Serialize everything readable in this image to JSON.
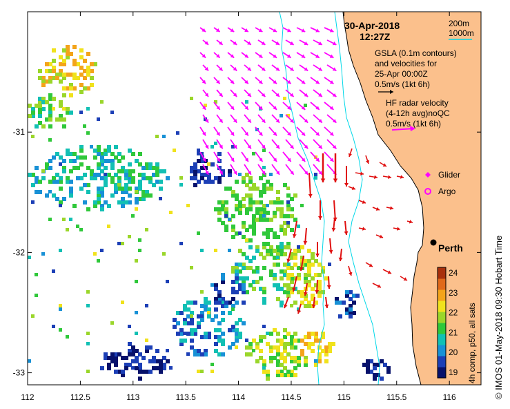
{
  "map": {
    "date": "30-Apr-2018",
    "time": "12:27Z",
    "x_ticks": [
      "112",
      "112.5",
      "113",
      "113.5",
      "114",
      "114.5",
      "115",
      "115.5",
      "116"
    ],
    "y_ticks": [
      "-31",
      "-32",
      "-33"
    ],
    "x_range": [
      112,
      116.3
    ],
    "y_range": [
      -30.0,
      -33.1
    ],
    "depth_contours": {
      "shallow": "200m",
      "deep": "1000m",
      "shallow_color": "#ffffff",
      "deep_color": "#00d8e8"
    },
    "gsla": {
      "line1": "GSLA (0.1m contours)",
      "line2": "and velocities for",
      "line3": "25-Apr 00:00Z",
      "scale": "0.5m/s (1kt 6h)",
      "arrow_color": "#000000"
    },
    "hf_radar": {
      "line1": "HF radar velocity",
      "line2": "(4-12h avg)noQC",
      "scale": "0.5m/s (1kt 6h)",
      "arrow_color": "#ff00ff"
    },
    "legend": {
      "glider": "Glider",
      "argo": "Argo",
      "glider_color": "#ff00ff",
      "argo_color": "#ff00ff"
    },
    "city": {
      "name": "Perth",
      "lon": 115.86,
      "lat": -31.95
    },
    "land_color": "#fbc08c",
    "velocity_colors": {
      "radar": "#ff00ff",
      "strong": "#e01010"
    }
  },
  "colorbar": {
    "ticks": [
      "24",
      "23",
      "22",
      "21",
      "20",
      "19"
    ],
    "label": "4h comp, p50, all sats",
    "colors": [
      "#07116b",
      "#1c3fb6",
      "#1891d6",
      "#12c0b4",
      "#2fc83a",
      "#9ad62a",
      "#f0e21c",
      "#f3a41a",
      "#e0691a",
      "#a8300c"
    ]
  },
  "side_caption": "© IMOS 01-May-2018 09:30 Hobart Time"
}
